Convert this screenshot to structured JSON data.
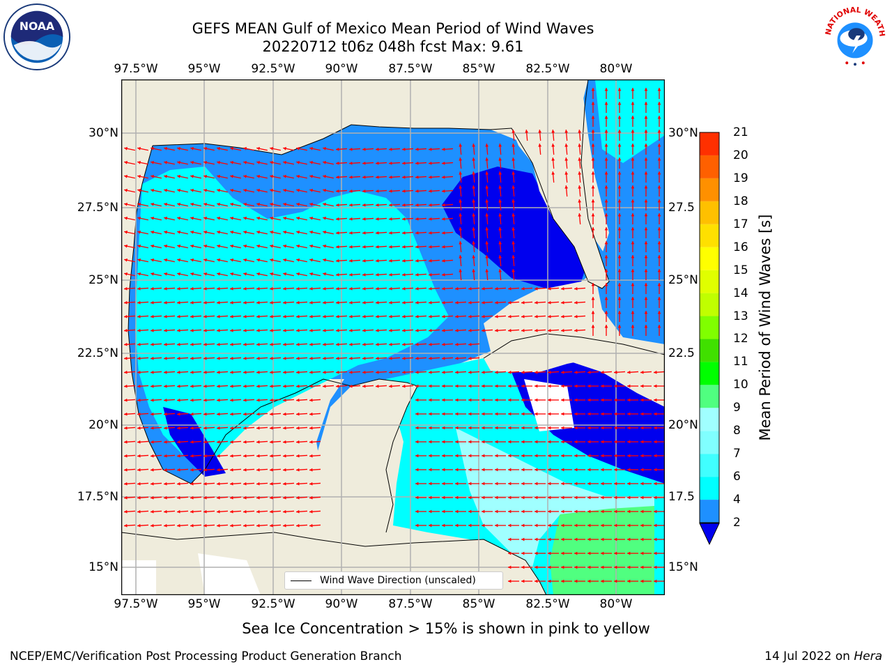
{
  "header": {
    "title_line1": "GEFS MEAN Gulf of Mexico Mean Period of Wind Waves",
    "title_line2": "20220712 t06z 048h fcst   Max: 9.61"
  },
  "map": {
    "lon_labels": [
      "97.5°W",
      "95°W",
      "92.5°W",
      "90°W",
      "87.5°W",
      "85°W",
      "82.5°W",
      "80°W"
    ],
    "lat_labels_left": [
      "30°N",
      "27.5°N",
      "25°N",
      "22.5°N",
      "20°N",
      "17.5°N",
      "15°N"
    ],
    "lat_labels_right": [
      "30°N",
      "27.5",
      "25°N",
      "22.5",
      "20°N",
      "17.5",
      "15°N"
    ],
    "legend_label": "Wind Wave Direction (unscaled)",
    "colors": {
      "land": "#efecdc",
      "ocean_deep": "#0000ee",
      "ocean_mid": "#1e90ff",
      "ocean_light": "#00ffff",
      "arrow": "#ff0000",
      "grid": "#b0b0b0"
    }
  },
  "colorbar": {
    "label": "Mean Period of Wind Waves [s]",
    "ticks": [
      "2",
      "4",
      "6",
      "7",
      "8",
      "9",
      "10",
      "11",
      "12",
      "13",
      "14",
      "15",
      "16",
      "17",
      "18",
      "19",
      "20",
      "21"
    ],
    "colors": [
      "#1e90ff",
      "#00ffff",
      "#40ffff",
      "#80ffff",
      "#a0ffff",
      "#50ff80",
      "#00ff00",
      "#40e000",
      "#80ff00",
      "#c0ff00",
      "#e0ff00",
      "#ffff00",
      "#ffe000",
      "#ffc000",
      "#ff9000",
      "#ff6000",
      "#ff3000",
      "#ff0000"
    ],
    "extend_color": "#0000ee"
  },
  "footer": {
    "note": "Sea Ice Concentration > 15% is shown in pink to yellow",
    "credit": "NCEP/EMC/Verification Post Processing Product Generation Branch",
    "date": "14 Jul 2022 on",
    "host": "Hera"
  },
  "logos": {
    "left": "NOAA",
    "right_arc": "NATIONAL WEATHER SERVICE"
  }
}
